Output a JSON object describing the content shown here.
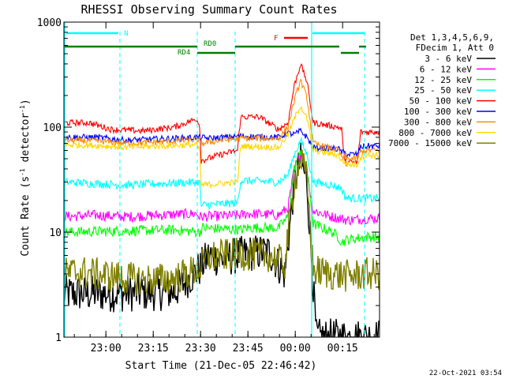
{
  "chart_data": {
    "type": "line",
    "title": "RHESSI Observing Summary Count Rates",
    "xlabel": "Start Time (21-Dec-05 22:46:42)",
    "ylabel_main": "Count Rate (s",
    "ylabel_sup1": "-1",
    "ylabel_mid": " detector",
    "ylabel_sup2": "-1",
    "ylabel_end": ")",
    "yscale": "log",
    "ylim": [
      1,
      1000
    ],
    "xlim_minutes": [
      0,
      100
    ],
    "x_ticks": [
      {
        "label": "23:00",
        "min": 13.3
      },
      {
        "label": "23:15",
        "min": 28.3
      },
      {
        "label": "23:30",
        "min": 43.3
      },
      {
        "label": "23:45",
        "min": 58.3
      },
      {
        "label": "00:00",
        "min": 73.3
      },
      {
        "label": "00:15",
        "min": 88.3
      }
    ],
    "y_ticks": [
      {
        "label": "1",
        "value": 1
      },
      {
        "label": "10",
        "value": 10
      },
      {
        "label": "100",
        "value": 100
      },
      {
        "label": "1000",
        "value": 1000
      }
    ],
    "legend": {
      "header1": "Det 1,3,4,5,6,9,",
      "header2": "FDecim 1, Att 0",
      "placement": "right"
    },
    "series": [
      {
        "name": "3 - 6 keV",
        "color": "#000000",
        "points": [
          [
            0,
            2.6
          ],
          [
            17,
            2.6
          ],
          [
            35,
            2.7
          ],
          [
            43,
            4.5
          ],
          [
            46,
            6
          ],
          [
            50,
            5.5
          ],
          [
            58,
            6.3
          ],
          [
            65,
            6.5
          ],
          [
            70,
            4
          ],
          [
            73,
            30
          ],
          [
            75,
            48
          ],
          [
            77,
            30
          ],
          [
            79,
            3
          ],
          [
            80,
            1.0
          ],
          [
            96,
            1.0
          ]
        ]
      },
      {
        "name": "6 - 12 keV",
        "color": "#ff00ff",
        "points": [
          [
            0,
            14
          ],
          [
            10,
            14.5
          ],
          [
            20,
            14
          ],
          [
            30,
            14.5
          ],
          [
            42,
            15
          ],
          [
            43,
            14
          ],
          [
            56,
            14.5
          ],
          [
            58,
            15
          ],
          [
            68,
            14.5
          ],
          [
            71,
            17
          ],
          [
            73,
            40
          ],
          [
            75,
            57
          ],
          [
            77,
            38
          ],
          [
            79,
            16
          ],
          [
            85,
            14
          ],
          [
            90,
            13
          ],
          [
            96,
            13.5
          ]
        ]
      },
      {
        "name": "12 - 25 keV",
        "color": "#00ff00",
        "points": [
          [
            0,
            10
          ],
          [
            20,
            10.3
          ],
          [
            35,
            10.5
          ],
          [
            43,
            10
          ],
          [
            44,
            11
          ],
          [
            56,
            10.5
          ],
          [
            58,
            11
          ],
          [
            68,
            11
          ],
          [
            71,
            14
          ],
          [
            73,
            40
          ],
          [
            75,
            62
          ],
          [
            77,
            40
          ],
          [
            79,
            12
          ],
          [
            85,
            10
          ],
          [
            87,
            9
          ],
          [
            88,
            8
          ],
          [
            90,
            8.5
          ],
          [
            96,
            9
          ]
        ]
      },
      {
        "name": "25 - 50 keV",
        "color": "#00ffff",
        "points": [
          [
            0,
            30
          ],
          [
            10,
            29
          ],
          [
            20,
            28
          ],
          [
            30,
            29
          ],
          [
            43,
            30
          ],
          [
            43.5,
            18
          ],
          [
            55,
            19
          ],
          [
            56,
            31
          ],
          [
            68,
            30
          ],
          [
            71,
            35
          ],
          [
            73,
            55
          ],
          [
            75,
            75
          ],
          [
            77,
            55
          ],
          [
            79,
            30
          ],
          [
            85,
            28
          ],
          [
            88,
            26
          ],
          [
            89,
            22
          ],
          [
            90,
            21
          ],
          [
            96,
            21
          ]
        ]
      },
      {
        "name": "50 - 100 keV",
        "color": "#ff0000",
        "points": [
          [
            0,
            110
          ],
          [
            8,
            110
          ],
          [
            15,
            95
          ],
          [
            25,
            92
          ],
          [
            35,
            100
          ],
          [
            42,
            120
          ],
          [
            43,
            105
          ],
          [
            43.5,
            48
          ],
          [
            50,
            55
          ],
          [
            55,
            60
          ],
          [
            56,
            125
          ],
          [
            62,
            125
          ],
          [
            68,
            95
          ],
          [
            71,
            110
          ],
          [
            73,
            250
          ],
          [
            75,
            400
          ],
          [
            77,
            270
          ],
          [
            79,
            110
          ],
          [
            87,
            100
          ],
          [
            88,
            95
          ],
          [
            89,
            46
          ],
          [
            93,
            46
          ],
          [
            94,
            90
          ],
          [
            96,
            90
          ]
        ]
      },
      {
        "name": "100 - 300 keV",
        "color": "#0000ff",
        "points": [
          [
            0,
            80
          ],
          [
            10,
            80
          ],
          [
            20,
            75
          ],
          [
            30,
            77
          ],
          [
            43,
            80
          ],
          [
            46,
            78
          ],
          [
            56,
            82
          ],
          [
            68,
            80
          ],
          [
            71,
            88
          ],
          [
            73,
            85
          ],
          [
            75,
            92
          ],
          [
            77,
            80
          ],
          [
            79,
            64
          ],
          [
            87,
            62
          ],
          [
            88,
            58
          ],
          [
            90,
            55
          ],
          [
            93,
            55
          ],
          [
            94,
            65
          ],
          [
            96,
            66
          ]
        ]
      },
      {
        "name": "300 - 800 keV",
        "color": "#ff8c00",
        "points": [
          [
            0,
            75
          ],
          [
            10,
            74
          ],
          [
            20,
            70
          ],
          [
            30,
            72
          ],
          [
            43,
            76
          ],
          [
            44,
            70
          ],
          [
            50,
            75
          ],
          [
            56,
            78
          ],
          [
            68,
            78
          ],
          [
            71,
            100
          ],
          [
            73,
            180
          ],
          [
            75,
            280
          ],
          [
            77,
            190
          ],
          [
            79,
            70
          ],
          [
            87,
            60
          ],
          [
            88,
            52
          ],
          [
            90,
            50
          ],
          [
            93,
            50
          ],
          [
            94,
            58
          ],
          [
            96,
            60
          ]
        ]
      },
      {
        "name": "800 - 7000 keV",
        "color": "#ffd700",
        "points": [
          [
            0,
            68
          ],
          [
            10,
            67
          ],
          [
            20,
            64
          ],
          [
            30,
            66
          ],
          [
            42,
            68
          ],
          [
            43,
            60
          ],
          [
            43.5,
            28
          ],
          [
            55,
            30
          ],
          [
            56,
            66
          ],
          [
            68,
            64
          ],
          [
            71,
            85
          ],
          [
            73,
            120
          ],
          [
            75,
            160
          ],
          [
            77,
            120
          ],
          [
            79,
            60
          ],
          [
            87,
            54
          ],
          [
            88,
            48
          ],
          [
            90,
            44
          ],
          [
            93,
            44
          ],
          [
            94,
            52
          ],
          [
            96,
            54
          ]
        ]
      },
      {
        "name": "7000 - 15000 keV",
        "color": "#808000",
        "points": [
          [
            0,
            4
          ],
          [
            5,
            4.2
          ],
          [
            15,
            3.8
          ],
          [
            25,
            3.5
          ],
          [
            35,
            3.6
          ],
          [
            43,
            4.5
          ],
          [
            46,
            5.8
          ],
          [
            56,
            6.2
          ],
          [
            65,
            6
          ],
          [
            70,
            5
          ],
          [
            73,
            30
          ],
          [
            75,
            50
          ],
          [
            77,
            32
          ],
          [
            79,
            4.3
          ],
          [
            85,
            4
          ],
          [
            90,
            3.8
          ],
          [
            96,
            4
          ]
        ]
      }
    ],
    "annotations": {
      "n_label": "N",
      "f_label": "F",
      "rd0_label": "RD0",
      "rd4_label": "RD4"
    },
    "timestamp": "22-Oct-2021 03:54"
  }
}
